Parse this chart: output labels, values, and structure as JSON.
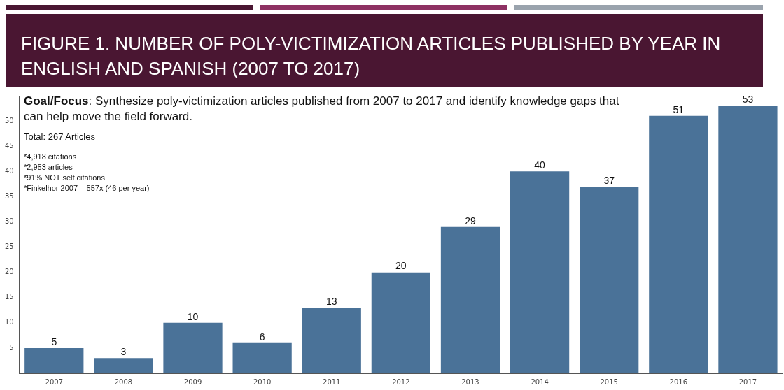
{
  "chart_data": {
    "type": "bar",
    "title": "FIGURE 1. NUMBER OF POLY-VICTIMIZATION ARTICLES PUBLISHED BY YEAR IN ENGLISH AND SPANISH (2007 TO 2017)",
    "categories": [
      "2007",
      "2008",
      "2009",
      "2010",
      "2011",
      "2012",
      "2013",
      "2014",
      "2015",
      "2016",
      "2017"
    ],
    "values": [
      5,
      3,
      10,
      6,
      13,
      20,
      29,
      40,
      37,
      51,
      53
    ],
    "color": "#4a7298",
    "ylim": [
      0,
      55
    ],
    "yticks": [
      5,
      10,
      15,
      20,
      25,
      30,
      35,
      40,
      45,
      50
    ],
    "grid": false,
    "legend": false,
    "data_labels": true,
    "annotations": [
      "Goal/Focus:  Synthesize poly-victimization articles published from 2007 to 2017 and identify knowledge gaps that can help move the field forward.",
      "Total: 267 Articles",
      "*4,918 citations",
      "*2,953 articles",
      "*91% NOT self citations",
      "*Finkelhor 2007 = 557x (46 per year)"
    ]
  }
}
